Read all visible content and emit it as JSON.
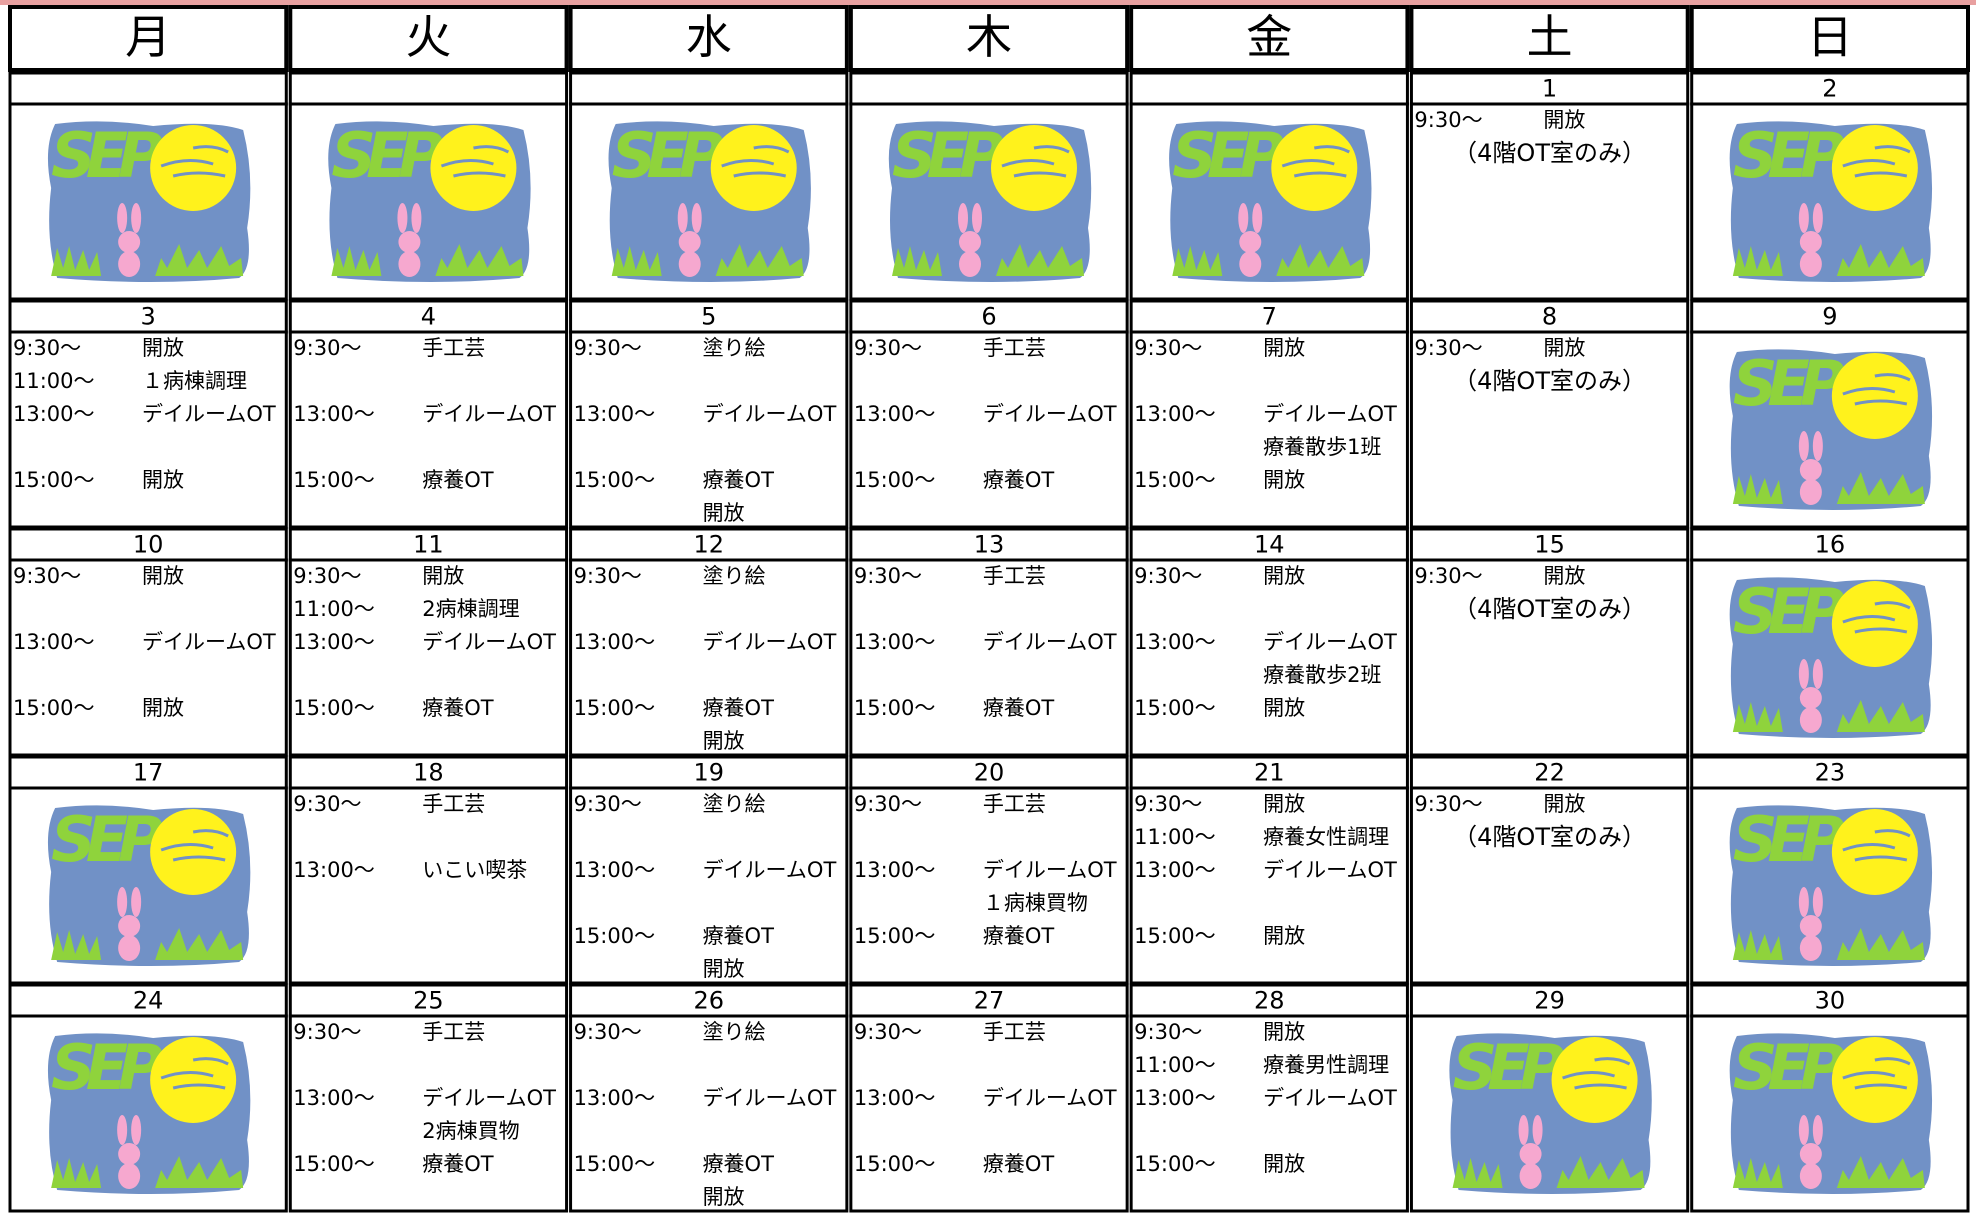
{
  "illustration_text": "SEP",
  "weekdays": [
    "月",
    "火",
    "水",
    "木",
    "金",
    "土",
    "日"
  ],
  "weeks": [
    [
      {
        "date": null,
        "image": true
      },
      {
        "date": null,
        "image": true
      },
      {
        "date": null,
        "image": true
      },
      {
        "date": null,
        "image": true
      },
      {
        "date": null,
        "image": true
      },
      {
        "date": "1",
        "lines": [
          {
            "time": "9:30～",
            "activity": "開放"
          },
          {
            "note": "（4階OT室のみ）"
          }
        ]
      },
      {
        "date": "2",
        "image": true
      }
    ],
    [
      {
        "date": "3",
        "lines": [
          {
            "time": "9:30～",
            "activity": "開放"
          },
          {
            "time": "11:00～",
            "activity": "１病棟調理"
          },
          {
            "time": "13:00～",
            "activity": "デイルームOT"
          },
          null,
          {
            "time": "15:00～",
            "activity": "開放"
          }
        ]
      },
      {
        "date": "4",
        "lines": [
          {
            "time": "9:30～",
            "activity": "手工芸"
          },
          null,
          {
            "time": "13:00～",
            "activity": "デイルームOT"
          },
          null,
          {
            "time": "15:00～",
            "activity": "療養OT"
          }
        ]
      },
      {
        "date": "5",
        "lines": [
          {
            "time": "9:30～",
            "activity": "塗り絵"
          },
          null,
          {
            "time": "13:00～",
            "activity": "デイルームOT"
          },
          null,
          {
            "time": "15:00～",
            "activity": "療養OT"
          },
          {
            "activity": "開放"
          }
        ]
      },
      {
        "date": "6",
        "lines": [
          {
            "time": "9:30～",
            "activity": "手工芸"
          },
          null,
          {
            "time": "13:00～",
            "activity": "デイルームOT"
          },
          null,
          {
            "time": "15:00～",
            "activity": "療養OT"
          }
        ]
      },
      {
        "date": "7",
        "lines": [
          {
            "time": "9:30～",
            "activity": "開放"
          },
          null,
          {
            "time": "13:00～",
            "activity": "デイルームOT"
          },
          {
            "activity": "療養散歩1班"
          },
          {
            "time": "15:00～",
            "activity": "開放"
          }
        ]
      },
      {
        "date": "8",
        "lines": [
          {
            "time": "9:30～",
            "activity": "開放"
          },
          {
            "note": "（4階OT室のみ）"
          }
        ]
      },
      {
        "date": "9",
        "image": true
      }
    ],
    [
      {
        "date": "10",
        "lines": [
          {
            "time": "9:30～",
            "activity": "開放"
          },
          null,
          {
            "time": "13:00～",
            "activity": "デイルームOT"
          },
          null,
          {
            "time": "15:00～",
            "activity": "開放"
          }
        ]
      },
      {
        "date": "11",
        "lines": [
          {
            "time": "9:30～",
            "activity": "開放"
          },
          {
            "time": "11:00～",
            "activity": "2病棟調理"
          },
          {
            "time": "13:00～",
            "activity": "デイルームOT"
          },
          null,
          {
            "time": "15:00～",
            "activity": "療養OT"
          }
        ]
      },
      {
        "date": "12",
        "lines": [
          {
            "time": "9:30～",
            "activity": "塗り絵"
          },
          null,
          {
            "time": "13:00～",
            "activity": "デイルームOT"
          },
          null,
          {
            "time": "15:00～",
            "activity": "療養OT"
          },
          {
            "activity": "開放"
          }
        ]
      },
      {
        "date": "13",
        "lines": [
          {
            "time": "9:30～",
            "activity": "手工芸"
          },
          null,
          {
            "time": "13:00～",
            "activity": "デイルームOT"
          },
          null,
          {
            "time": "15:00～",
            "activity": "療養OT"
          }
        ]
      },
      {
        "date": "14",
        "lines": [
          {
            "time": "9:30～",
            "activity": "開放"
          },
          null,
          {
            "time": "13:00～",
            "activity": "デイルームOT"
          },
          {
            "activity": "療養散歩2班"
          },
          {
            "time": "15:00～",
            "activity": "開放"
          }
        ]
      },
      {
        "date": "15",
        "lines": [
          {
            "time": "9:30～",
            "activity": "開放"
          },
          {
            "note": "（4階OT室のみ）"
          }
        ]
      },
      {
        "date": "16",
        "image": true
      }
    ],
    [
      {
        "date": "17",
        "image": true
      },
      {
        "date": "18",
        "lines": [
          {
            "time": "9:30～",
            "activity": "手工芸"
          },
          null,
          {
            "time": "13:00～",
            "activity": "いこい喫茶"
          }
        ]
      },
      {
        "date": "19",
        "lines": [
          {
            "time": "9:30～",
            "activity": "塗り絵"
          },
          null,
          {
            "time": "13:00～",
            "activity": "デイルームOT"
          },
          null,
          {
            "time": "15:00～",
            "activity": "療養OT"
          },
          {
            "activity": "開放"
          }
        ]
      },
      {
        "date": "20",
        "lines": [
          {
            "time": "9:30～",
            "activity": "手工芸"
          },
          null,
          {
            "time": "13:00～",
            "activity": "デイルームOT"
          },
          {
            "activity": "１病棟買物"
          },
          {
            "time": "15:00～",
            "activity": "療養OT"
          }
        ]
      },
      {
        "date": "21",
        "lines": [
          {
            "time": "9:30～",
            "activity": "開放"
          },
          {
            "time": "11:00～",
            "activity": "療養女性調理"
          },
          {
            "time": "13:00～",
            "activity": "デイルームOT"
          },
          null,
          {
            "time": "15:00～",
            "activity": "開放"
          }
        ]
      },
      {
        "date": "22",
        "lines": [
          {
            "time": "9:30～",
            "activity": "開放"
          },
          {
            "note": "（4階OT室のみ）"
          }
        ]
      },
      {
        "date": "23",
        "image": true
      }
    ],
    [
      {
        "date": "24",
        "image": true
      },
      {
        "date": "25",
        "lines": [
          {
            "time": "9:30～",
            "activity": "手工芸"
          },
          null,
          {
            "time": "13:00～",
            "activity": "デイルームOT"
          },
          {
            "activity": "2病棟買物"
          },
          {
            "time": "15:00～",
            "activity": "療養OT"
          }
        ]
      },
      {
        "date": "26",
        "lines": [
          {
            "time": "9:30～",
            "activity": "塗り絵"
          },
          null,
          {
            "time": "13:00～",
            "activity": "デイルームOT"
          },
          null,
          {
            "time": "15:00～",
            "activity": "療養OT"
          },
          {
            "activity": "開放"
          }
        ]
      },
      {
        "date": "27",
        "lines": [
          {
            "time": "9:30～",
            "activity": "手工芸"
          },
          null,
          {
            "time": "13:00～",
            "activity": "デイルームOT"
          },
          null,
          {
            "time": "15:00～",
            "activity": "療養OT"
          }
        ]
      },
      {
        "date": "28",
        "lines": [
          {
            "time": "9:30～",
            "activity": "開放"
          },
          {
            "time": "11:00～",
            "activity": "療養男性調理"
          },
          {
            "time": "13:00～",
            "activity": "デイルームOT"
          },
          null,
          {
            "time": "15:00～",
            "activity": "開放"
          }
        ]
      },
      {
        "date": "29",
        "image": true
      },
      {
        "date": "30",
        "image": true
      }
    ]
  ]
}
